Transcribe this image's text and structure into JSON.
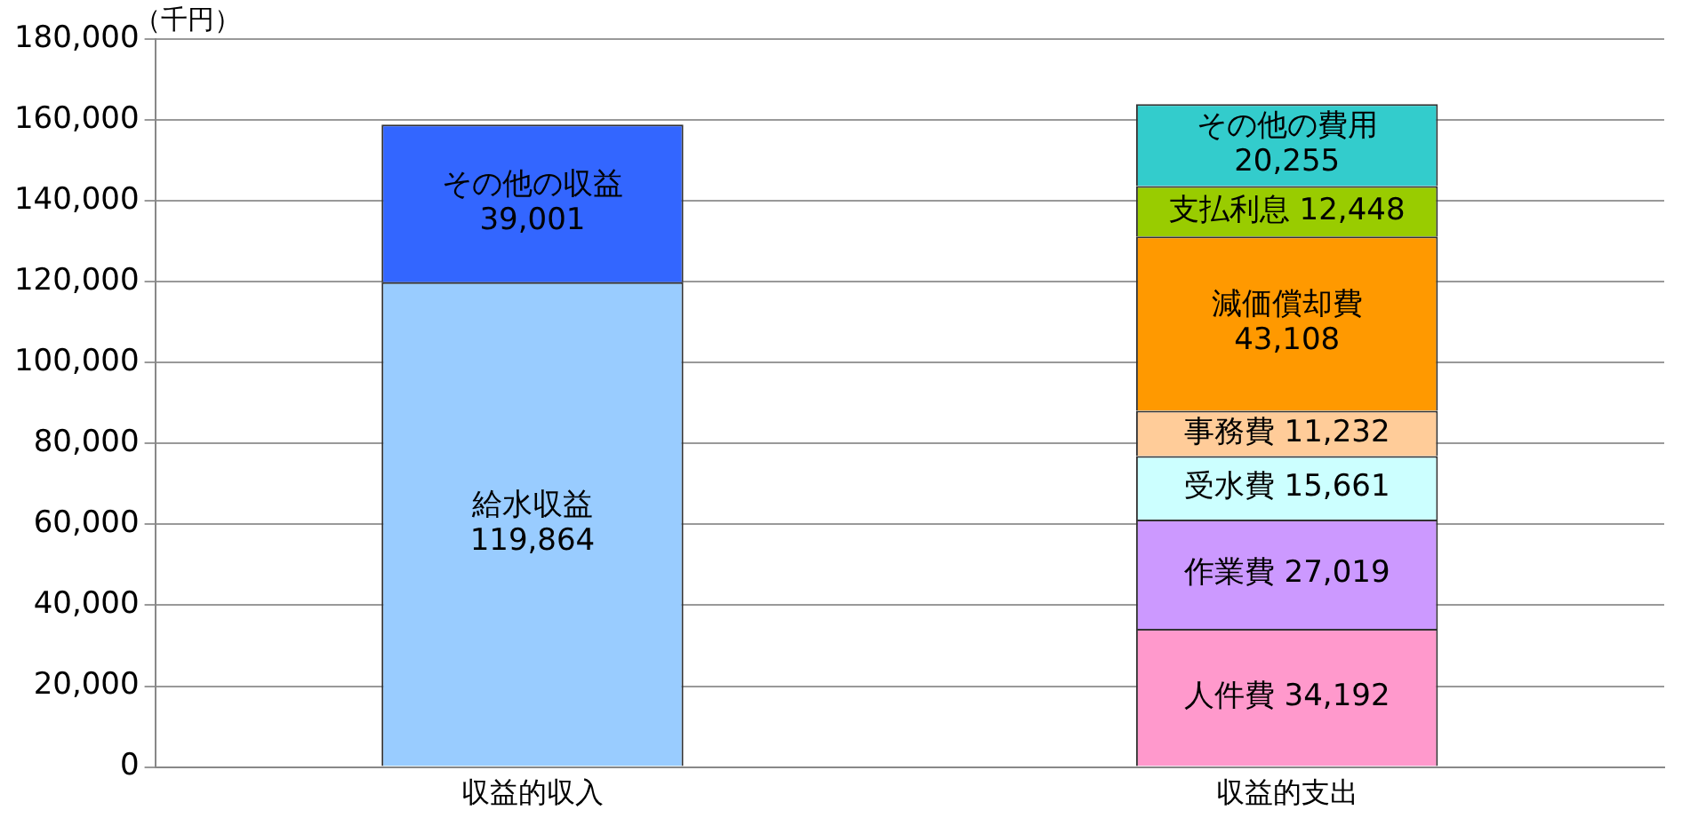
{
  "chart_data": {
    "type": "bar",
    "stacked": true,
    "ylabel": "（千円）",
    "categories": [
      "収益的収入",
      "収益的支出"
    ],
    "ylim": [
      0,
      180000
    ],
    "yticks": [
      {
        "value": 0,
        "label": "0"
      },
      {
        "value": 20000,
        "label": "20,000"
      },
      {
        "value": 40000,
        "label": "40,000"
      },
      {
        "value": 60000,
        "label": "60,000"
      },
      {
        "value": 80000,
        "label": "80,000"
      },
      {
        "value": 100000,
        "label": "100,000"
      },
      {
        "value": 120000,
        "label": "120,000"
      },
      {
        "value": 140000,
        "label": "140,000"
      },
      {
        "value": 160000,
        "label": "160,000"
      },
      {
        "value": 180000,
        "label": "180,000"
      }
    ],
    "grid": "y",
    "legend": false,
    "series": [
      {
        "name": "給水収益",
        "color": "#99ccff",
        "values": [
          119864,
          null
        ],
        "value_labels": [
          "119,864",
          null
        ]
      },
      {
        "name": "その他の収益",
        "color": "#3366ff",
        "values": [
          39001,
          null
        ],
        "value_labels": [
          "39,001",
          null
        ]
      },
      {
        "name": "人件費",
        "color": "#ff99cc",
        "values": [
          null,
          34192
        ],
        "value_labels": [
          null,
          "34,192"
        ]
      },
      {
        "name": "作業費",
        "color": "#cc99ff",
        "values": [
          null,
          27019
        ],
        "value_labels": [
          null,
          "27,019"
        ]
      },
      {
        "name": "受水費",
        "color": "#ccffff",
        "values": [
          null,
          15661
        ],
        "value_labels": [
          null,
          "15,661"
        ]
      },
      {
        "name": "事務費",
        "color": "#ffcc99",
        "values": [
          null,
          11232
        ],
        "value_labels": [
          null,
          "11,232"
        ]
      },
      {
        "name": "減価償却費",
        "color": "#ff9900",
        "values": [
          null,
          43108
        ],
        "value_labels": [
          null,
          "43,108"
        ]
      },
      {
        "name": "支払利息",
        "color": "#99cc00",
        "values": [
          null,
          12448
        ],
        "value_labels": [
          null,
          "12,448"
        ]
      },
      {
        "name": "その他の費用",
        "color": "#33cccc",
        "values": [
          null,
          20255
        ],
        "value_labels": [
          null,
          "20,255"
        ]
      }
    ]
  }
}
